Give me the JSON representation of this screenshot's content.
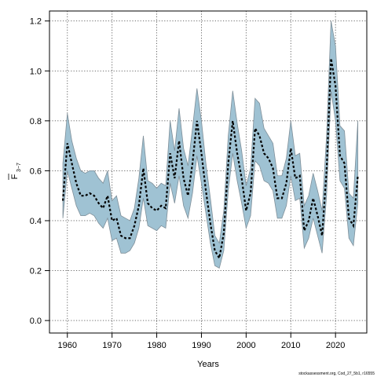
{
  "chart_data": {
    "type": "line",
    "title": "",
    "xlabel": "Years",
    "ylabel_main": "F",
    "ylabel_subscript": "3−7",
    "xlim": [
      1956,
      2027
    ],
    "ylim": [
      -0.05,
      1.24
    ],
    "x_ticks": [
      1960,
      1970,
      1980,
      1990,
      2000,
      2010,
      2020
    ],
    "y_ticks": [
      0.0,
      0.2,
      0.4,
      0.6,
      0.8,
      1.0,
      1.2
    ],
    "grid": true,
    "grid_style": "dotted",
    "colors": {
      "band": "#9fc2d3",
      "band_edge": "#7f8f99",
      "line": "#000000",
      "grid": "#555555"
    },
    "series": [
      {
        "x": [
          1959,
          1960,
          1961,
          1962,
          1963,
          1964,
          1965,
          1966,
          1967,
          1968,
          1969,
          1970,
          1971,
          1972,
          1973,
          1974,
          1975,
          1976,
          1977,
          1978,
          1979,
          1980,
          1981,
          1982,
          1983,
          1984,
          1985,
          1986,
          1987,
          1988,
          1989,
          1990,
          1991,
          1992,
          1993,
          1994,
          1995,
          1996,
          1997,
          1998,
          1999,
          2000,
          2001,
          2002,
          2003,
          2004,
          2005,
          2006,
          2007,
          2008,
          2009,
          2010,
          2011,
          2012,
          2013,
          2014,
          2015,
          2016,
          2017,
          2018,
          2019,
          2020,
          2021,
          2022,
          2023,
          2024,
          2025
        ],
        "y": [
          0.48,
          0.71,
          0.63,
          0.55,
          0.5,
          0.5,
          0.51,
          0.5,
          0.47,
          0.45,
          0.5,
          0.4,
          0.41,
          0.34,
          0.33,
          0.33,
          0.38,
          0.46,
          0.61,
          0.47,
          0.45,
          0.44,
          0.46,
          0.45,
          0.67,
          0.57,
          0.72,
          0.57,
          0.5,
          0.63,
          0.8,
          0.67,
          0.52,
          0.39,
          0.28,
          0.25,
          0.35,
          0.63,
          0.8,
          0.67,
          0.57,
          0.44,
          0.51,
          0.77,
          0.74,
          0.67,
          0.65,
          0.61,
          0.49,
          0.49,
          0.55,
          0.69,
          0.57,
          0.58,
          0.36,
          0.4,
          0.49,
          0.42,
          0.34,
          0.6,
          1.05,
          0.94,
          0.66,
          0.63,
          0.41,
          0.38,
          0.58
        ]
      }
    ],
    "band": {
      "upper": [
        0.63,
        0.83,
        0.72,
        0.65,
        0.6,
        0.59,
        0.6,
        0.6,
        0.57,
        0.55,
        0.6,
        0.48,
        0.5,
        0.42,
        0.41,
        0.4,
        0.45,
        0.57,
        0.74,
        0.56,
        0.55,
        0.53,
        0.55,
        0.54,
        0.8,
        0.68,
        0.85,
        0.69,
        0.62,
        0.77,
        0.93,
        0.8,
        0.63,
        0.49,
        0.34,
        0.31,
        0.44,
        0.74,
        0.92,
        0.79,
        0.68,
        0.54,
        0.61,
        0.89,
        0.87,
        0.77,
        0.74,
        0.71,
        0.58,
        0.58,
        0.65,
        0.8,
        0.66,
        0.67,
        0.46,
        0.5,
        0.59,
        0.52,
        0.44,
        0.74,
        1.2,
        1.1,
        0.78,
        0.76,
        0.51,
        0.49,
        0.8
      ],
      "lower": [
        0.41,
        0.6,
        0.53,
        0.46,
        0.42,
        0.42,
        0.43,
        0.42,
        0.39,
        0.37,
        0.41,
        0.32,
        0.33,
        0.27,
        0.27,
        0.28,
        0.31,
        0.37,
        0.49,
        0.38,
        0.37,
        0.36,
        0.38,
        0.37,
        0.55,
        0.47,
        0.58,
        0.46,
        0.41,
        0.51,
        0.66,
        0.55,
        0.43,
        0.31,
        0.22,
        0.21,
        0.28,
        0.52,
        0.67,
        0.56,
        0.47,
        0.37,
        0.42,
        0.64,
        0.62,
        0.56,
        0.55,
        0.52,
        0.41,
        0.41,
        0.46,
        0.58,
        0.48,
        0.49,
        0.29,
        0.33,
        0.41,
        0.34,
        0.27,
        0.5,
        0.92,
        0.8,
        0.56,
        0.53,
        0.33,
        0.3,
        0.47
      ]
    },
    "footnote": "stockassessment.org, Cod_27_5b1, r16555"
  }
}
